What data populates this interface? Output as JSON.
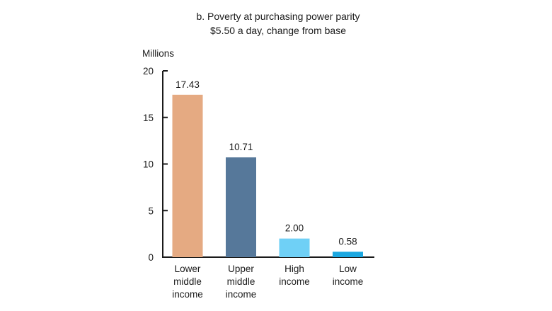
{
  "chart_data": {
    "type": "bar",
    "title": "b. Poverty at purchasing power parity",
    "subtitle": "$5.50 a day, change from base",
    "ylabel": "Millions",
    "ylim": [
      0,
      20
    ],
    "yticks": [
      0,
      5,
      10,
      15,
      20
    ],
    "grid": false,
    "categories": [
      [
        "Lower",
        "middle",
        "income"
      ],
      [
        "Upper",
        "middle",
        "income"
      ],
      [
        "High",
        "income"
      ],
      [
        "Low",
        "income"
      ]
    ],
    "values": [
      17.43,
      10.71,
      2.0,
      0.58
    ],
    "value_labels": [
      "17.43",
      "10.71",
      "2.00",
      "0.58"
    ],
    "colors": [
      "#e5aa82",
      "#56789a",
      "#6fd0f6",
      "#1ba7e0"
    ]
  }
}
